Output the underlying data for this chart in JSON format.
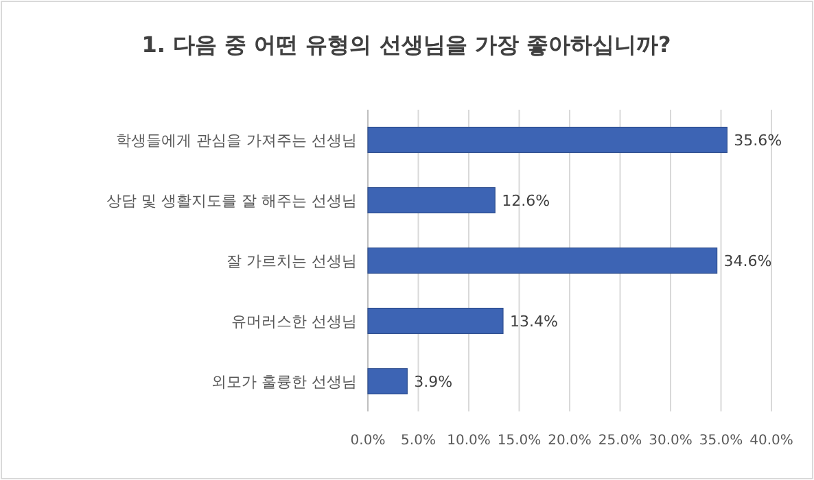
{
  "chart_data": {
    "type": "bar",
    "orientation": "horizontal",
    "title": "1. 다음 중 어떤 유형의 선생님을 가장 좋아하십니까?",
    "categories": [
      "학생들에게 관심을 가져주는 선생님",
      "상담 및 생활지도를 잘 해주는 선생님",
      "잘 가르치는 선생님",
      "유머러스한 선생님",
      "외모가 훌륭한 선생님"
    ],
    "values": [
      35.6,
      12.6,
      34.6,
      13.4,
      3.9
    ],
    "value_labels": [
      "35.6%",
      "12.6%",
      "34.6%",
      "13.4%",
      "3.9%"
    ],
    "color": "#3d64b4",
    "xlim": [
      0,
      40
    ],
    "xticks": [
      {
        "value": 0,
        "label": "0.0%"
      },
      {
        "value": 5,
        "label": "5.0%"
      },
      {
        "value": 10,
        "label": "10.0%"
      },
      {
        "value": 15,
        "label": "15.0%"
      },
      {
        "value": 20,
        "label": "20.0%"
      },
      {
        "value": 25,
        "label": "25.0%"
      },
      {
        "value": 30,
        "label": "30.0%"
      },
      {
        "value": 35,
        "label": "35.0%"
      },
      {
        "value": 40,
        "label": "40.0%"
      }
    ],
    "grid": "x"
  }
}
